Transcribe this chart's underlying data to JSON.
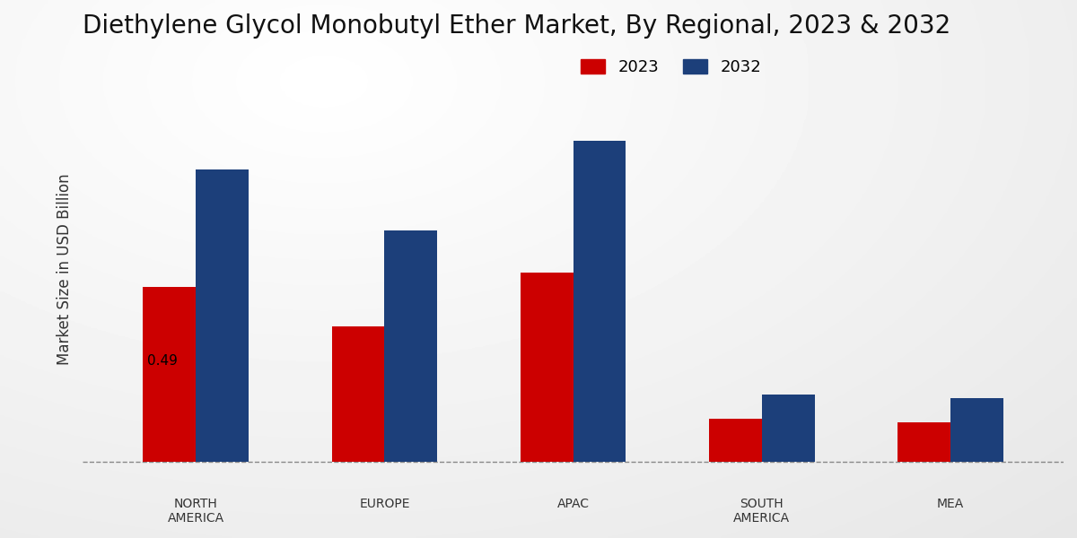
{
  "title": "Diethylene Glycol Monobutyl Ether Market, By Regional, 2023 & 2032",
  "ylabel": "Market Size in USD Billion",
  "categories": [
    "NORTH\nAMERICA",
    "EUROPE",
    "APAC",
    "SOUTH\nAMERICA",
    "MEA"
  ],
  "values_2023": [
    0.49,
    0.38,
    0.53,
    0.12,
    0.11
  ],
  "values_2032": [
    0.82,
    0.65,
    0.9,
    0.19,
    0.18
  ],
  "color_2023": "#cc0000",
  "color_2032": "#1c3f7a",
  "annotation_label": "0.49",
  "annotation_index": 0,
  "legend_labels": [
    "2023",
    "2032"
  ],
  "bar_width": 0.28,
  "title_fontsize": 20,
  "axis_label_fontsize": 12,
  "tick_fontsize": 10,
  "legend_fontsize": 13,
  "ylim_max": 1.15
}
